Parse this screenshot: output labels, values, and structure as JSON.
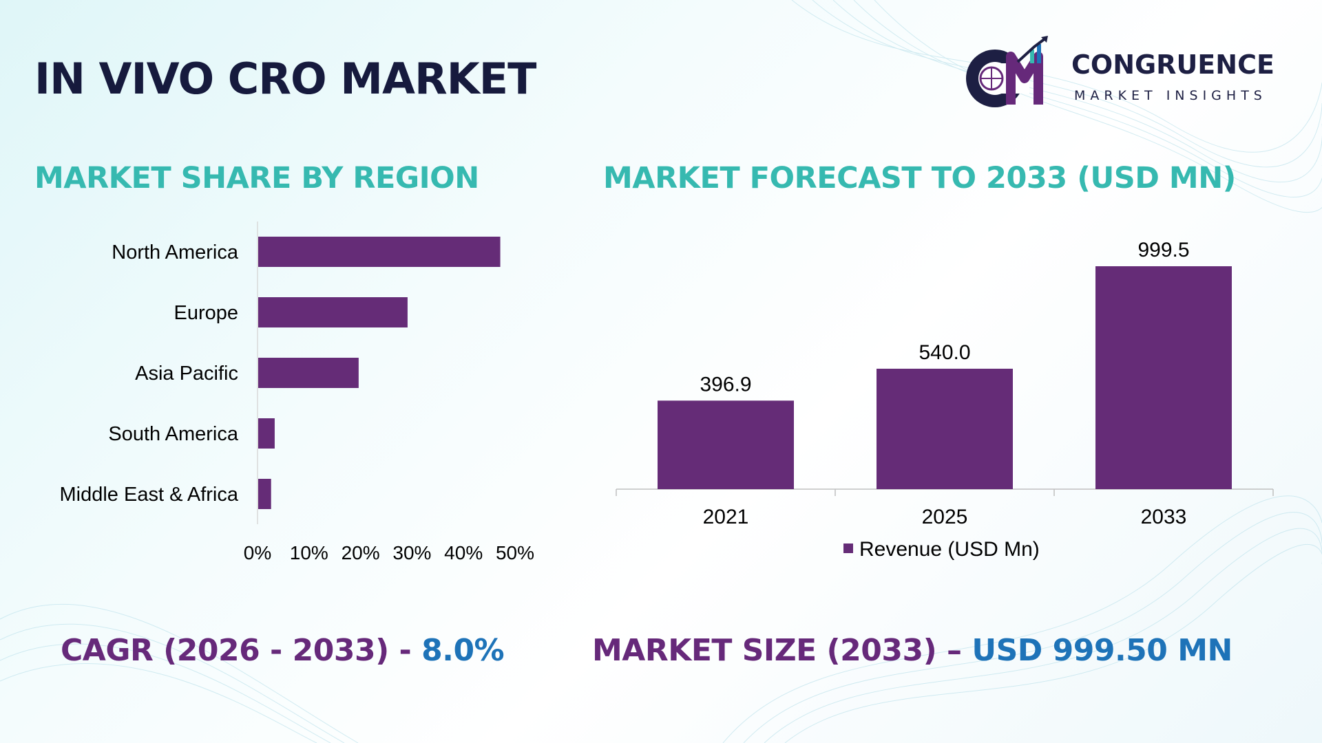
{
  "title": "IN VIVO CRO MARKET",
  "logo": {
    "name": "CONGRUENCE",
    "tagline": "MARKET INSIGHTS",
    "monogram": "CM"
  },
  "colors": {
    "bar": "#652c77",
    "section_title": "#36b9b0",
    "stat_label": "#66297a",
    "stat_value": "#1e73b8",
    "title": "#161a3d"
  },
  "chart_data": [
    {
      "type": "bar",
      "orientation": "horizontal",
      "title": "MARKET SHARE BY REGION",
      "categories": [
        "North America",
        "Europe",
        "Asia Pacific",
        "South America",
        "Middle East & Africa"
      ],
      "values": [
        47,
        29,
        19.5,
        3.2,
        2.5
      ],
      "unit": "%",
      "xlim": [
        0,
        50
      ],
      "xticks": [
        "0%",
        "10%",
        "20%",
        "30%",
        "40%",
        "50%"
      ],
      "grid": false,
      "legend": "none"
    },
    {
      "type": "bar",
      "orientation": "vertical",
      "title": "MARKET FORECAST TO 2033 (USD MN)",
      "categories": [
        "2021",
        "2025",
        "2033"
      ],
      "series": [
        {
          "name": "Revenue (USD Mn)",
          "values": [
            396.9,
            540.0,
            999.5
          ]
        }
      ],
      "data_labels": [
        "396.9",
        "540.0",
        "999.5"
      ],
      "ylim": [
        0,
        1000
      ],
      "grid": false,
      "legend": "bottom"
    }
  ],
  "stats": {
    "cagr_label": "CAGR (2026 - 2033) - ",
    "cagr_value": "8.0%",
    "size_label": "MARKET SIZE (2033) – ",
    "size_value": "USD 999.50 MN"
  }
}
